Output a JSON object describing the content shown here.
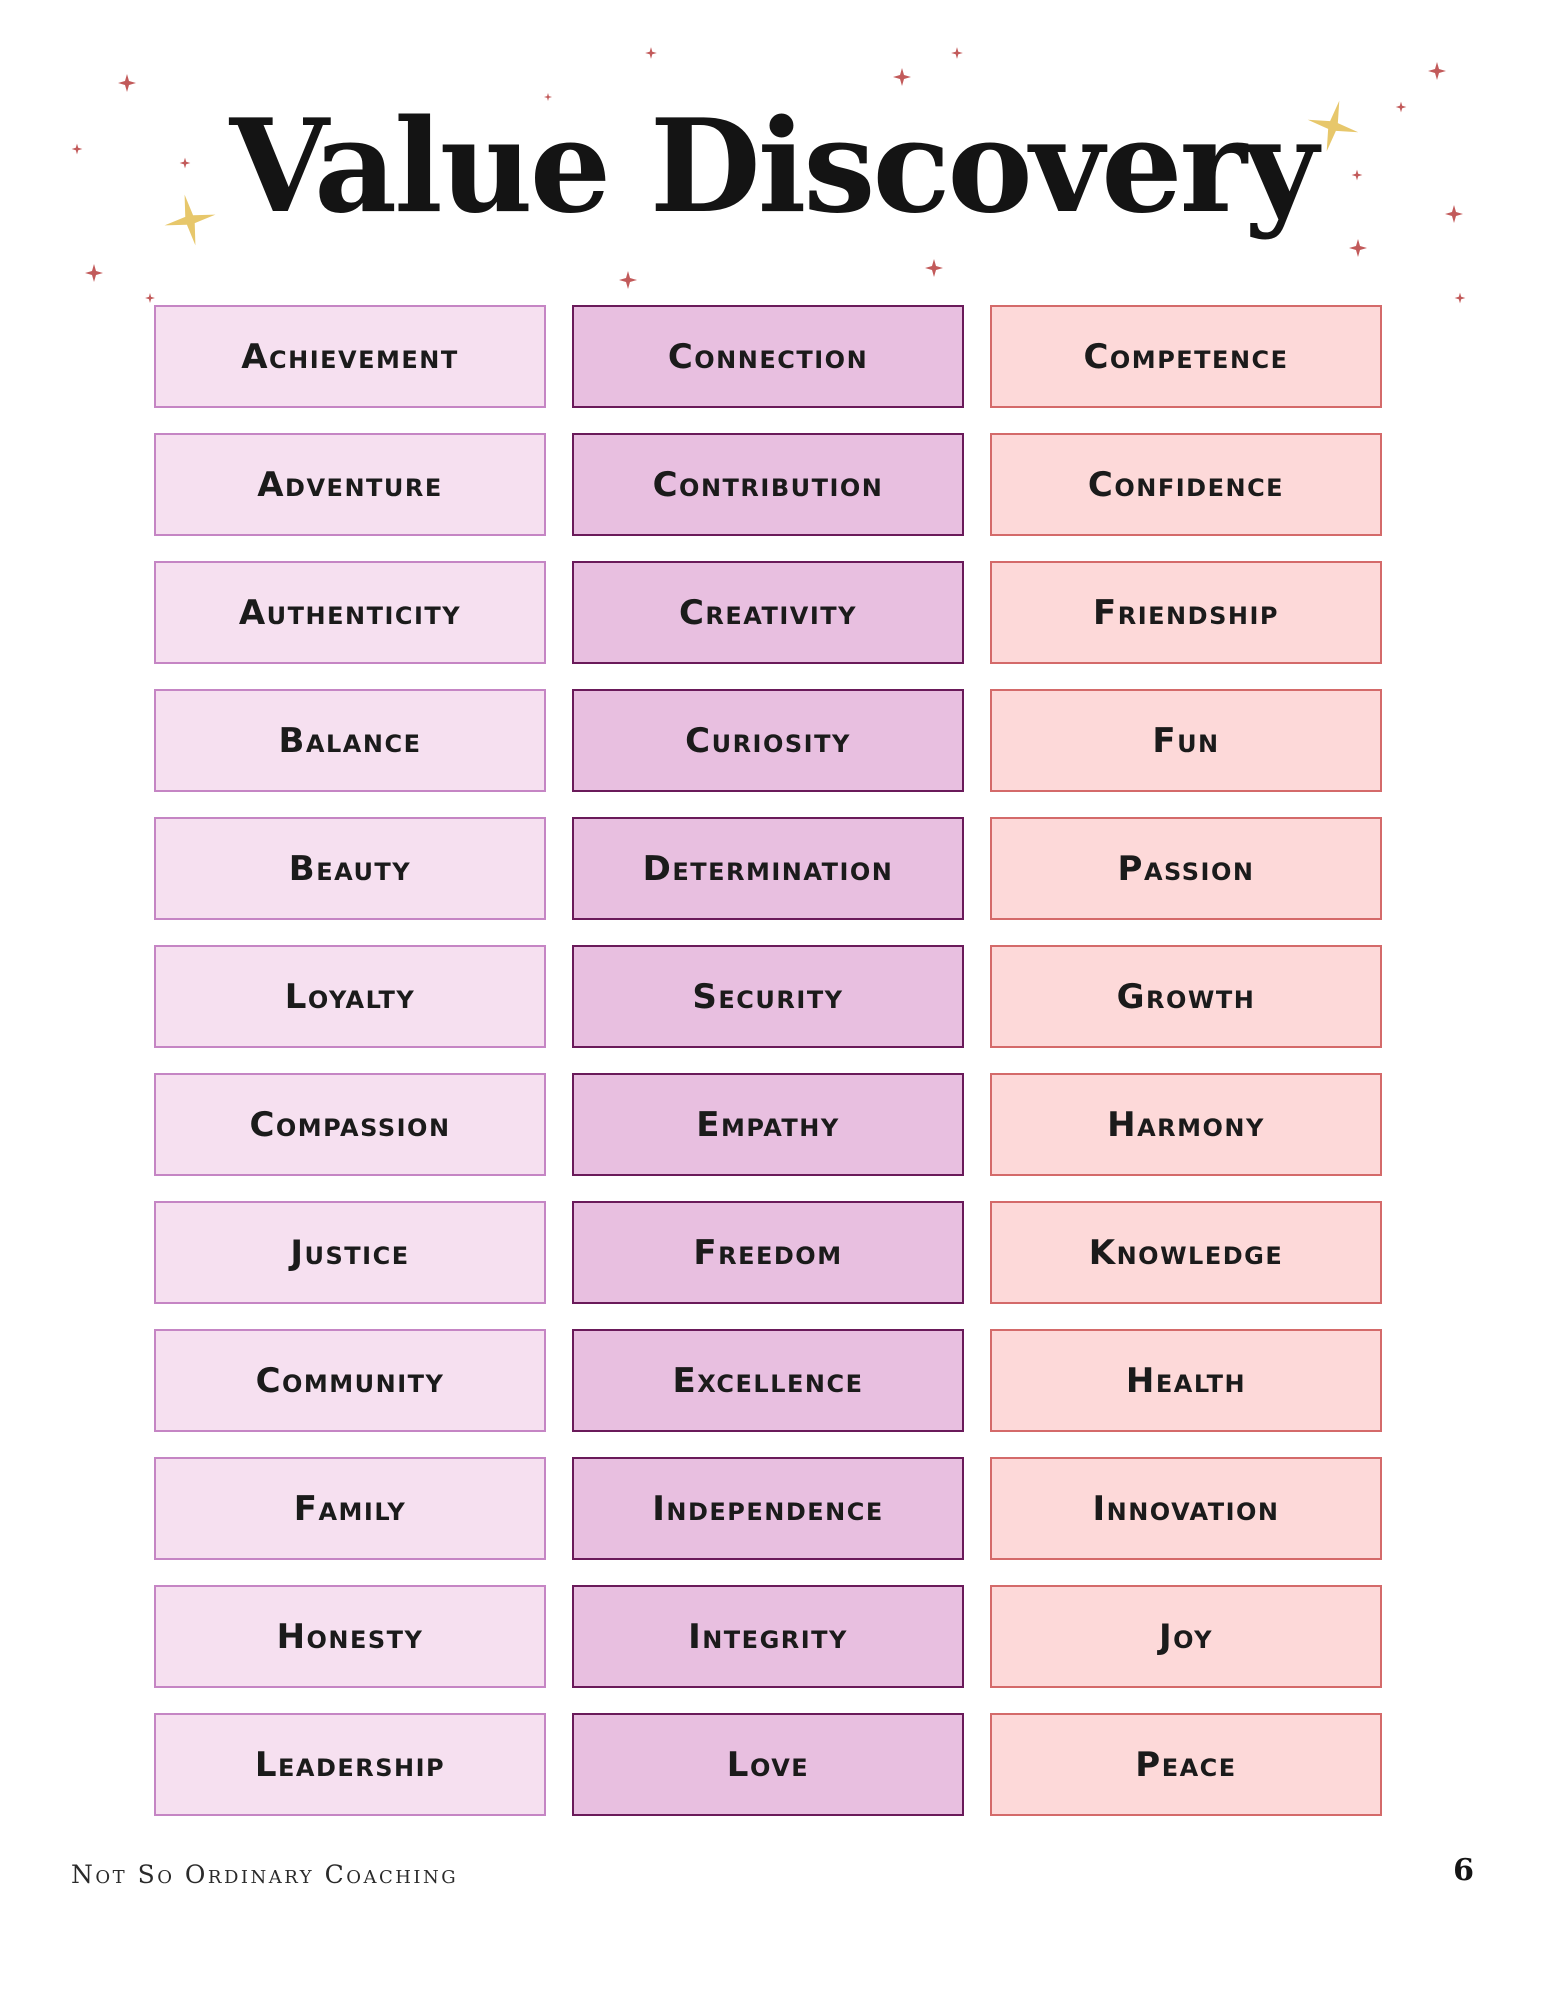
{
  "header": {
    "title": "Value Discovery"
  },
  "decoration": {
    "sparkle_icon": "sparkle-star-icon",
    "colors": {
      "small_sparkle": "#c25a5a",
      "large_sparkle": "#e7c76b"
    }
  },
  "values": {
    "column_1": [
      "Achievement",
      "Adventure",
      "Authenticity",
      "Balance",
      "Beauty",
      "Loyalty",
      "Compassion",
      "Justice",
      "Community",
      "Family",
      "Honesty",
      "Leadership"
    ],
    "column_2": [
      "Connection",
      "Contribution",
      "Creativity",
      "Curiosity",
      "Determination",
      "Security",
      "Empathy",
      "Freedom",
      "Excellence",
      "Independence",
      "Integrity",
      "Love"
    ],
    "column_3": [
      "Competence",
      "Confidence",
      "Friendship",
      "Fun",
      "Passion",
      "Growth",
      "Harmony",
      "Knowledge",
      "Health",
      "Innovation",
      "Joy",
      "Peace"
    ]
  },
  "colors": {
    "column_1_fill": "#f6e0f0",
    "column_1_border": "#c585c4",
    "column_2_fill": "#e8bfe0",
    "column_2_border": "#6a1a5a",
    "column_3_fill": "#fdd9d9",
    "column_3_border": "#d46a6a"
  },
  "footer": {
    "brand": "Not So Ordinary Coaching",
    "page_number": "6"
  }
}
